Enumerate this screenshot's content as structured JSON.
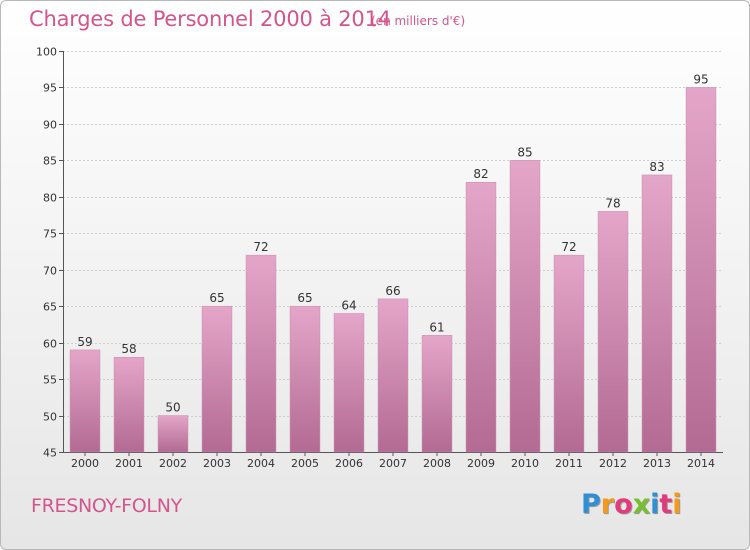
{
  "header": {
    "title": "Charges de Personnel 2000 à 2014",
    "subtitle": "(en milliers d'€)"
  },
  "footer": {
    "commune": "FRESNOY-FOLNY",
    "logo": "Proxiti"
  },
  "colors": {
    "title": "#d4558d",
    "bar_top": "#e4a6c8",
    "bar_bottom": "#b36a93",
    "logo_letters": [
      "#2f8fd4",
      "#f39a1b",
      "#e23b7b",
      "#77bf2e",
      "#2f8fd4",
      "#e23b7b",
      "#f39a1b"
    ]
  },
  "chart_data": {
    "type": "bar",
    "title": "Charges de Personnel 2000 à 2014",
    "subtitle": "(en milliers d'€)",
    "categories": [
      "2000",
      "2001",
      "2002",
      "2003",
      "2004",
      "2005",
      "2006",
      "2007",
      "2008",
      "2009",
      "2010",
      "2011",
      "2012",
      "2013",
      "2014"
    ],
    "values": [
      59,
      58,
      50,
      65,
      72,
      65,
      64,
      66,
      61,
      82,
      85,
      72,
      78,
      83,
      95
    ],
    "ylim": [
      45,
      100
    ],
    "yticks": [
      45,
      50,
      55,
      60,
      65,
      70,
      75,
      80,
      85,
      90,
      95,
      100
    ],
    "grid": true
  }
}
